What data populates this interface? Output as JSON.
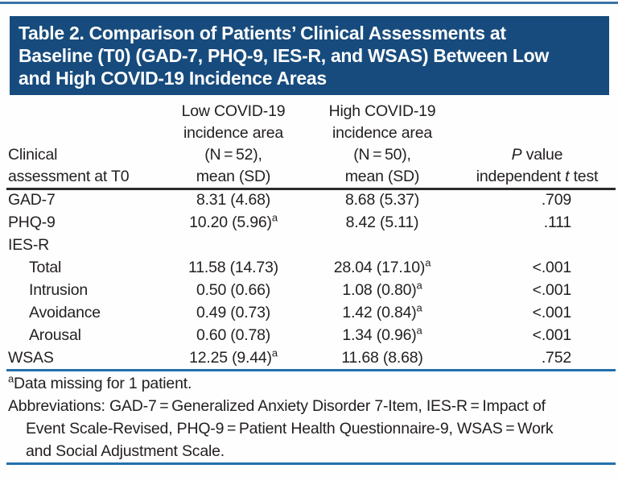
{
  "colors": {
    "title_bg": "#174b7d",
    "top_rule": "#3b74a9",
    "header_rule": "#2a2a2a",
    "blue_rule": "#2170ae",
    "text": "#231f20",
    "title_text": "#ffffff"
  },
  "title": {
    "lines": [
      "Table 2. Comparison of Patients’ Clinical Assessments at",
      "Baseline (T0) (GAD-7, PHQ-9, IES-R, and WSAS) Between Low",
      "and High COVID-19 Incidence Areas"
    ]
  },
  "header": {
    "col1_lines": [
      "Clinical",
      "assessment at T0"
    ],
    "col2_lines": [
      "Low COVID-19",
      "incidence area",
      "(N = 52),",
      "mean (SD)"
    ],
    "col3_lines": [
      "High COVID-19",
      "incidence area",
      "(N = 50),",
      "mean (SD)"
    ],
    "col4_line1": {
      "italic": "P",
      "rest": " value"
    },
    "col4_line2": {
      "pre": "independent ",
      "italic": "t",
      "post": " test"
    }
  },
  "rows": [
    {
      "label": "GAD-7",
      "low": "8.31 (4.68)",
      "low_sup": "",
      "high": "8.68 (5.37)",
      "high_sup": "",
      "p": ".709"
    },
    {
      "label": "PHQ-9",
      "low": "10.20 (5.96)",
      "low_sup": "a",
      "high": "8.42 (5.11)",
      "high_sup": "",
      "p": ".111"
    },
    {
      "label": "IES-R",
      "low": "",
      "low_sup": "",
      "high": "",
      "high_sup": "",
      "p": ""
    },
    {
      "label": "Total",
      "low": "11.58 (14.73)",
      "low_sup": "",
      "high": "28.04 (17.10)",
      "high_sup": "a",
      "p": "<.001"
    },
    {
      "label": "Intrusion",
      "low": "0.50 (0.66)",
      "low_sup": "",
      "high": "1.08 (0.80)",
      "high_sup": "a",
      "p": "<.001"
    },
    {
      "label": "Avoidance",
      "low": "0.49 (0.73)",
      "low_sup": "",
      "high": "1.42 (0.84)",
      "high_sup": "a",
      "p": "<.001"
    },
    {
      "label": "Arousal",
      "low": "0.60 (0.78)",
      "low_sup": "",
      "high": "1.34 (0.96)",
      "high_sup": "a",
      "p": "<.001"
    },
    {
      "label": "WSAS",
      "low": "12.25 (9.44)",
      "low_sup": "a",
      "high": "11.68 (8.68)",
      "high_sup": "",
      "p": ".752"
    }
  ],
  "footnotes": {
    "note_sup": "a",
    "note": "Data missing for 1 patient.",
    "abbrev_lines": [
      "Abbreviations: GAD-7 = Generalized Anxiety Disorder 7-Item, IES-R = Impact of",
      "Event Scale-Revised, PHQ-9 = Patient Health Questionnaire-9, WSAS = Work",
      "and Social Adjustment Scale."
    ]
  }
}
